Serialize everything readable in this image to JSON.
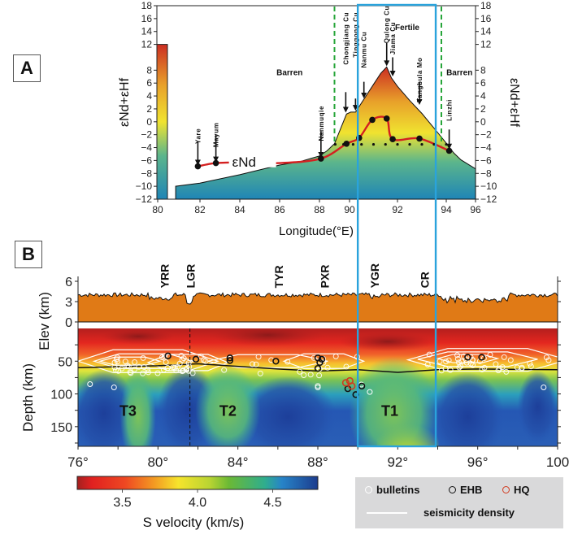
{
  "panels": {
    "a_label": "A",
    "b_label": "B"
  },
  "chart_data": [
    {
      "type": "area",
      "panel": "A",
      "xlabel": "Longitude(°E)",
      "ylabel_left": "εNd+εHf",
      "ylabel_right": "εNd+εHf",
      "xlim": [
        80,
        96
      ],
      "ylim": [
        -12,
        18
      ],
      "x_ticks": [
        80,
        82,
        84,
        86,
        88,
        90,
        92,
        94,
        96
      ],
      "y_ticks": [
        18,
        16,
        14,
        12,
        8,
        6,
        4,
        2,
        0,
        -2,
        -4,
        -6,
        -8,
        -10,
        -12
      ],
      "colorbar": {
        "min": -12,
        "max": 12,
        "colors": [
          "#1f85b6",
          "#5bb58c",
          "#f0e330",
          "#e8a02a",
          "#cc2e22"
        ]
      },
      "region_labels": [
        {
          "text": "Barren",
          "x": 86.5,
          "y": 7.2
        },
        {
          "text": "Fertile",
          "x": 92.4,
          "y": 14.2
        },
        {
          "text": "Barren",
          "x": 94.9,
          "y": 7.2
        }
      ],
      "boundary_lines": [
        {
          "x": 89.0,
          "style": "green-dashed"
        },
        {
          "x": 93.8,
          "style": "green-dashed"
        }
      ],
      "highlight_box": {
        "x_range": [
          90.25,
          93.6
        ]
      },
      "envelope": {
        "name": "εNd+εHf",
        "x": [
          80.85,
          82,
          84,
          86,
          87,
          88,
          88.5,
          89,
          89.5,
          89.8,
          90.05,
          90.25,
          90.6,
          91,
          91.3,
          91.55,
          91.75,
          92,
          92.5,
          93,
          93.5,
          94,
          94.5,
          95,
          96
        ],
        "y": [
          -10,
          -9.5,
          -8.2,
          -6.7,
          -6.2,
          -5.3,
          -4.5,
          -3.4,
          -0.5,
          1.2,
          1.5,
          1.5,
          3.5,
          5.8,
          7.5,
          8.5,
          6.8,
          5.5,
          3.3,
          1.3,
          -1.0,
          -3.3,
          -4.8,
          -5.9,
          -7.3
        ]
      },
      "series": [
        {
          "name": "εNd",
          "label": "εNd",
          "x": [
            81.9,
            82.8,
            88.1,
            89.8,
            90.4,
            90.95,
            91.55,
            91.8,
            92.9,
            94.2
          ],
          "y": [
            -6.9,
            -6.4,
            -5.7,
            -3.4,
            -2.5,
            0.3,
            0.5,
            -2.7,
            -2.6,
            -4.5
          ]
        },
        {
          "name": "baseline",
          "style": "dotted",
          "x": [
            89.05,
            89.6,
            90.15,
            90.5,
            91.0,
            91.5,
            92.0,
            92.5,
            93.0,
            93.5,
            94.0
          ],
          "y": [
            -3.5,
            -3.5,
            -3.5,
            -3.5,
            -3.5,
            -3.5,
            -3.5,
            -3.5,
            -3.5,
            -3.5,
            -3.5
          ]
        }
      ],
      "deposits": [
        {
          "name": "Yare",
          "x": 81.9
        },
        {
          "name": "Mayum",
          "x": 82.8
        },
        {
          "name": "Nanmuqie",
          "x": 88.1
        },
        {
          "name": "Chongjiang Cu",
          "x": 89.75
        },
        {
          "name": "Tinggong Cu",
          "x": 90.25
        },
        {
          "name": "Nanmu Cu",
          "x": 90.6
        },
        {
          "name": "Qulong Cu",
          "x": 91.55
        },
        {
          "name": "Jiama Cu",
          "x": 91.8
        },
        {
          "name": "Tangbula Mo",
          "x": 92.9
        },
        {
          "name": "Linzhi",
          "x": 94.2
        }
      ]
    },
    {
      "type": "heatmap",
      "panel": "B",
      "xlim": [
        76,
        100
      ],
      "x_ticks": [
        "76°",
        "80°",
        "84°",
        "88°",
        "92°",
        "96°",
        "100"
      ],
      "elev": {
        "ylabel": "Elev (km)",
        "ylim": [
          0,
          6
        ],
        "y_ticks": [
          6,
          3,
          0
        ],
        "mean_elevation_km": 4.0
      },
      "depth": {
        "ylabel": "Depth (km)",
        "ylim": [
          0,
          180
        ],
        "y_ticks": [
          50,
          100,
          150
        ]
      },
      "rifts": [
        {
          "name": "YRR",
          "x": 80.3
        },
        {
          "name": "LGR",
          "x": 81.6
        },
        {
          "name": "TYR",
          "x": 86.0
        },
        {
          "name": "PXR",
          "x": 88.3
        },
        {
          "name": "YGR",
          "x": 90.8
        },
        {
          "name": "CR",
          "x": 93.3
        }
      ],
      "anomalies": [
        {
          "name": "T3",
          "x": 78.5,
          "depth": 125
        },
        {
          "name": "T2",
          "x": 83.5,
          "depth": 125
        },
        {
          "name": "T1",
          "x": 91.6,
          "depth": 125
        }
      ],
      "moho_depth_km": {
        "x": [
          76,
          80,
          82,
          86,
          88,
          90,
          92,
          94,
          96,
          100
        ],
        "y": [
          60,
          57,
          54,
          62,
          65,
          63,
          67,
          63,
          62,
          63
        ]
      },
      "dashed_line_x": 81.6,
      "highlight_box": {
        "x_range": [
          90.0,
          93.9
        ]
      },
      "events": {
        "ehb": [
          [
            80.5,
            42
          ],
          [
            81.9,
            47
          ],
          [
            83.6,
            45
          ],
          [
            83.6,
            49
          ],
          [
            85.9,
            50
          ],
          [
            88.0,
            45
          ],
          [
            88.2,
            47
          ],
          [
            88.1,
            52
          ],
          [
            88.0,
            61
          ],
          [
            89.5,
            92
          ],
          [
            89.9,
            101
          ],
          [
            90.2,
            88
          ],
          [
            95.5,
            44
          ],
          [
            96.2,
            44
          ]
        ],
        "hq": [
          [
            89.4,
            83
          ],
          [
            89.6,
            80
          ],
          [
            89.7,
            88
          ]
        ]
      },
      "colorbar": {
        "label": "S velocity (km/s)",
        "min": 3.2,
        "max": 4.8,
        "ticks": [
          "3.5",
          "4.0",
          "4.5"
        ]
      }
    }
  ],
  "legend": {
    "bulletins": "bulletins",
    "ehb": "EHB",
    "hq": "HQ",
    "density": "seismicity density"
  },
  "colors": {
    "highlight_box": "#2aa3dc",
    "boundary_green": "#27a53a",
    "end_line": "#d42020",
    "topo_fill": "#e07a16",
    "hq_red": "#d23a1e"
  }
}
